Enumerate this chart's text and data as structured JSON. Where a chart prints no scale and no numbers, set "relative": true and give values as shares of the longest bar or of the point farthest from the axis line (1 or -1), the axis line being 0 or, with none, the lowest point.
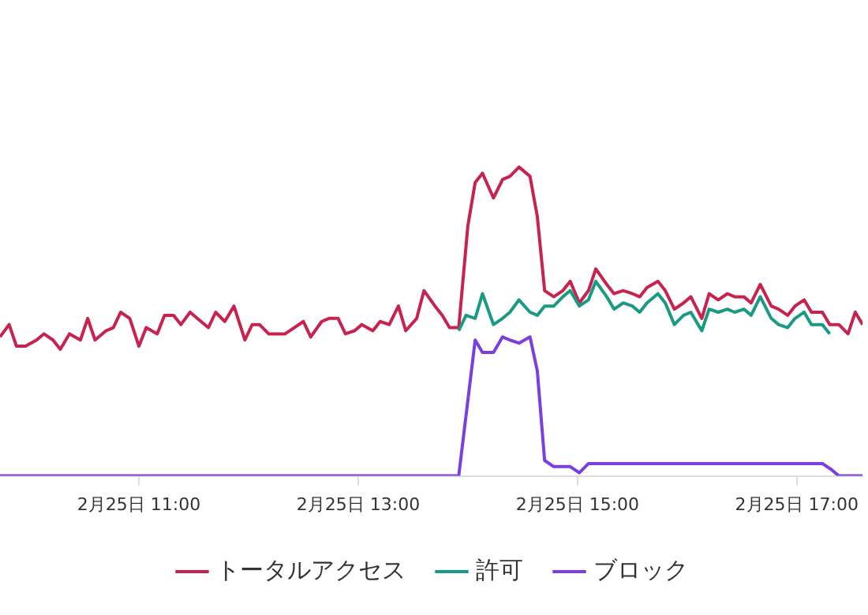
{
  "chart_data": {
    "type": "line",
    "relative": true,
    "legend": "bottom",
    "marker": "none",
    "line_style": "solid",
    "xlim": [
      "--02-25T09:44",
      "--02-25T17:36"
    ],
    "xticks": [
      {
        "value": "--02-25T11:00",
        "label": "2月25日 11:00"
      },
      {
        "value": "--02-25T13:00",
        "label": "2月25日 13:00"
      },
      {
        "value": "--02-25T15:00",
        "label": "2月25日 15:00"
      },
      {
        "value": "--02-25T17:00",
        "label": "2月25日 17:00"
      }
    ],
    "series": [
      {
        "name": "トータルアクセス",
        "color": "#c8234f",
        "x": [
          "--02-25T09:44",
          "--02-25T09:49",
          "--02-25T09:53",
          "--02-25T09:58",
          "--02-25T10:04",
          "--02-25T10:08",
          "--02-25T10:13",
          "--02-25T10:17",
          "--02-25T10:22",
          "--02-25T10:28",
          "--02-25T10:32",
          "--02-25T10:36",
          "--02-25T10:42",
          "--02-25T10:46",
          "--02-25T10:50",
          "--02-25T10:55",
          "--02-25T11:00",
          "--02-25T11:04",
          "--02-25T11:10",
          "--02-25T11:14",
          "--02-25T11:19",
          "--02-25T11:23",
          "--02-25T11:28",
          "--02-25T11:34",
          "--02-25T11:38",
          "--02-25T11:42",
          "--02-25T11:47",
          "--02-25T11:52",
          "--02-25T11:58",
          "--02-25T12:02",
          "--02-25T12:06",
          "--02-25T12:11",
          "--02-25T12:16",
          "--02-25T12:20",
          "--02-25T12:25",
          "--02-25T12:30",
          "--02-25T12:34",
          "--02-25T12:40",
          "--02-25T12:44",
          "--02-25T12:49",
          "--02-25T12:53",
          "--02-25T12:58",
          "--02-25T13:02",
          "--02-25T13:08",
          "--02-25T13:12",
          "--02-25T13:17",
          "--02-25T13:22",
          "--02-25T13:26",
          "--02-25T13:32",
          "--02-25T13:36",
          "--02-25T13:42",
          "--02-25T13:46",
          "--02-25T13:50",
          "--02-25T13:55",
          "--02-25T14:00",
          "--02-25T14:04",
          "--02-25T14:08",
          "--02-25T14:14",
          "--02-25T14:19",
          "--02-25T14:23",
          "--02-25T14:28",
          "--02-25T14:34",
          "--02-25T14:38",
          "--02-25T14:42",
          "--02-25T14:47",
          "--02-25T14:52",
          "--02-25T14:56",
          "--02-25T15:01",
          "--02-25T15:06",
          "--02-25T15:10",
          "--02-25T15:16",
          "--02-25T15:20",
          "--02-25T15:25",
          "--02-25T15:30",
          "--02-25T15:34",
          "--02-25T15:38",
          "--02-25T15:44",
          "--02-25T15:48",
          "--02-25T15:53",
          "--02-25T15:58",
          "--02-25T16:02",
          "--02-25T16:08",
          "--02-25T16:12",
          "--02-25T16:17",
          "--02-25T16:22",
          "--02-25T16:26",
          "--02-25T16:31",
          "--02-25T16:35",
          "--02-25T16:40",
          "--02-25T16:46",
          "--02-25T16:50",
          "--02-25T16:55",
          "--02-25T16:59",
          "--02-25T17:04",
          "--02-25T17:08",
          "--02-25T17:14",
          "--02-25T17:18",
          "--02-25T17:23",
          "--02-25T17:28",
          "--02-25T17:32",
          "--02-25T17:36"
        ],
        "values": [
          0.45,
          0.49,
          0.42,
          0.42,
          0.44,
          0.46,
          0.44,
          0.41,
          0.46,
          0.44,
          0.51,
          0.44,
          0.47,
          0.48,
          0.53,
          0.51,
          0.42,
          0.48,
          0.46,
          0.52,
          0.52,
          0.49,
          0.53,
          0.5,
          0.48,
          0.53,
          0.5,
          0.55,
          0.44,
          0.49,
          0.49,
          0.46,
          0.46,
          0.46,
          0.48,
          0.5,
          0.45,
          0.5,
          0.51,
          0.51,
          0.46,
          0.47,
          0.49,
          0.47,
          0.5,
          0.49,
          0.55,
          0.47,
          0.51,
          0.6,
          0.55,
          0.52,
          0.48,
          0.48,
          0.81,
          0.95,
          0.98,
          0.9,
          0.96,
          0.97,
          1,
          0.97,
          0.84,
          0.6,
          0.58,
          0.6,
          0.63,
          0.56,
          0.6,
          0.67,
          0.62,
          0.59,
          0.6,
          0.59,
          0.58,
          0.61,
          0.63,
          0.6,
          0.54,
          0.56,
          0.58,
          0.51,
          0.59,
          0.57,
          0.59,
          0.58,
          0.58,
          0.56,
          0.62,
          0.55,
          0.54,
          0.52,
          0.55,
          0.57,
          0.53,
          0.53,
          0.49,
          0.49,
          0.46,
          0.53,
          0.49
        ]
      },
      {
        "name": "許可",
        "color": "#1a9a82",
        "x": [
          "--02-25T13:55",
          "--02-25T13:59",
          "--02-25T14:04",
          "--02-25T14:08",
          "--02-25T14:14",
          "--02-25T14:19",
          "--02-25T14:23",
          "--02-25T14:28",
          "--02-25T14:34",
          "--02-25T14:38",
          "--02-25T14:42",
          "--02-25T14:47",
          "--02-25T14:52",
          "--02-25T14:56",
          "--02-25T15:01",
          "--02-25T15:06",
          "--02-25T15:10",
          "--02-25T15:16",
          "--02-25T15:20",
          "--02-25T15:25",
          "--02-25T15:30",
          "--02-25T15:34",
          "--02-25T15:38",
          "--02-25T15:44",
          "--02-25T15:48",
          "--02-25T15:53",
          "--02-25T15:58",
          "--02-25T16:02",
          "--02-25T16:08",
          "--02-25T16:12",
          "--02-25T16:17",
          "--02-25T16:22",
          "--02-25T16:26",
          "--02-25T16:31",
          "--02-25T16:35",
          "--02-25T16:40",
          "--02-25T16:46",
          "--02-25T16:50",
          "--02-25T16:55",
          "--02-25T16:59",
          "--02-25T17:04",
          "--02-25T17:08",
          "--02-25T17:14",
          "--02-25T17:18"
        ],
        "values": [
          0.47,
          0.52,
          0.51,
          0.59,
          0.49,
          0.51,
          0.53,
          0.57,
          0.53,
          0.52,
          0.55,
          0.55,
          0.58,
          0.6,
          0.55,
          0.57,
          0.63,
          0.58,
          0.54,
          0.56,
          0.55,
          0.53,
          0.56,
          0.59,
          0.56,
          0.49,
          0.52,
          0.53,
          0.47,
          0.54,
          0.53,
          0.54,
          0.53,
          0.54,
          0.52,
          0.58,
          0.51,
          0.49,
          0.48,
          0.51,
          0.53,
          0.49,
          0.49,
          0.46
        ]
      },
      {
        "name": "ブロック",
        "color": "#7b3fe0",
        "x": [
          "--02-25T09:44",
          "--02-25T13:55",
          "--02-25T14:04",
          "--02-25T14:08",
          "--02-25T14:14",
          "--02-25T14:19",
          "--02-25T14:23",
          "--02-25T14:28",
          "--02-25T14:34",
          "--02-25T14:38",
          "--02-25T14:42",
          "--02-25T14:47",
          "--02-25T14:56",
          "--02-25T15:01",
          "--02-25T15:06",
          "--02-25T15:10",
          "--02-25T16:30",
          "--02-25T17:14",
          "--02-25T17:19",
          "--02-25T17:23",
          "--02-25T17:36"
        ],
        "values": [
          0,
          0,
          0.44,
          0.4,
          0.4,
          0.45,
          0.44,
          0.43,
          0.45,
          0.34,
          0.05,
          0.03,
          0.03,
          0.01,
          0.04,
          0.04,
          0.04,
          0.04,
          0.02,
          0,
          0
        ]
      }
    ]
  }
}
